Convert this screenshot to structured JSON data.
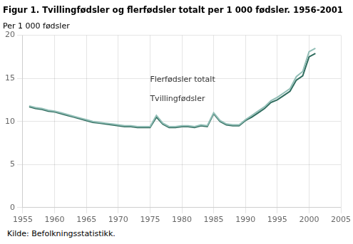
{
  "chart_data": {
    "type": "line",
    "title": "Figur 1. Tvillingfødsler og flerfødsler totalt per 1 000 fødsler. 1956-2001",
    "ylabel": "Per 1 000 fødsler",
    "source": "Kilde: Befolkningsstatistikk.",
    "x": [
      1956,
      1957,
      1958,
      1959,
      1960,
      1961,
      1962,
      1963,
      1964,
      1965,
      1966,
      1967,
      1968,
      1969,
      1970,
      1971,
      1972,
      1973,
      1974,
      1975,
      1976,
      1977,
      1978,
      1979,
      1980,
      1981,
      1982,
      1983,
      1984,
      1985,
      1986,
      1987,
      1988,
      1989,
      1990,
      1991,
      1992,
      1993,
      1994,
      1995,
      1996,
      1997,
      1998,
      1999,
      2000,
      2001
    ],
    "series": [
      {
        "name": "Flerfødsler totalt",
        "color": "#90bdb5",
        "values": [
          11.8,
          11.6,
          11.5,
          11.3,
          11.2,
          11.0,
          10.8,
          10.6,
          10.4,
          10.2,
          10.0,
          9.9,
          9.8,
          9.7,
          9.6,
          9.5,
          9.5,
          9.4,
          9.4,
          9.4,
          10.7,
          9.8,
          9.4,
          9.4,
          9.5,
          9.5,
          9.4,
          9.6,
          9.5,
          11.0,
          10.1,
          9.7,
          9.6,
          9.6,
          10.2,
          10.7,
          11.2,
          11.7,
          12.4,
          12.8,
          13.3,
          13.8,
          15.2,
          15.8,
          18.1,
          18.5
        ]
      },
      {
        "name": "Tvillingfødsler",
        "color": "#2e6b5d",
        "values": [
          11.7,
          11.5,
          11.4,
          11.2,
          11.1,
          10.9,
          10.7,
          10.5,
          10.3,
          10.1,
          9.9,
          9.8,
          9.7,
          9.6,
          9.5,
          9.4,
          9.4,
          9.3,
          9.3,
          9.3,
          10.5,
          9.7,
          9.3,
          9.3,
          9.4,
          9.4,
          9.3,
          9.5,
          9.4,
          10.9,
          10.0,
          9.6,
          9.5,
          9.5,
          10.1,
          10.5,
          11.0,
          11.5,
          12.2,
          12.5,
          13.0,
          13.5,
          14.8,
          15.3,
          17.5,
          17.9
        ]
      }
    ],
    "xlim": [
      1955,
      2005
    ],
    "ylim": [
      0,
      20
    ],
    "xticks": [
      1955,
      1960,
      1965,
      1970,
      1975,
      1980,
      1985,
      1990,
      1995,
      2000,
      2005
    ],
    "yticks": [
      0,
      5,
      10,
      15,
      20
    ],
    "grid": true
  }
}
